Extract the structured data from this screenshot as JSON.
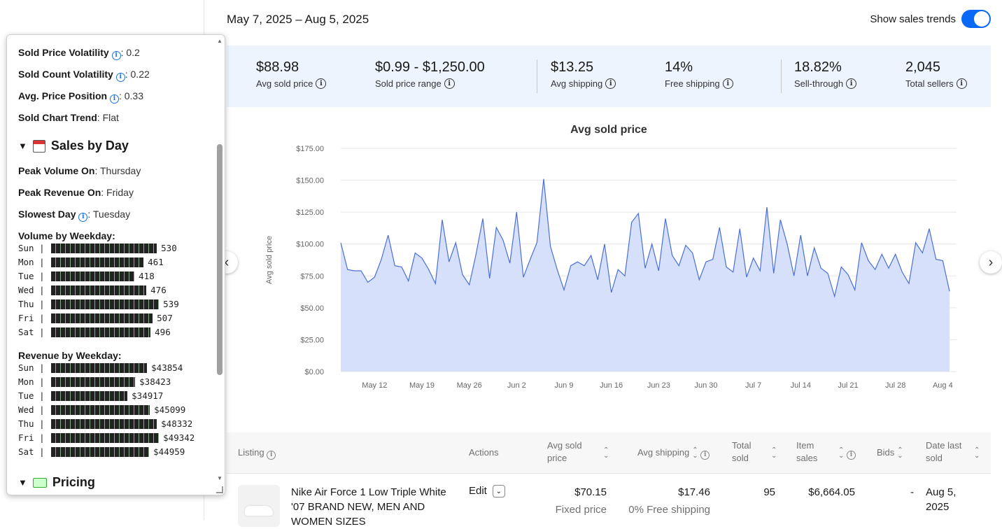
{
  "header": {
    "date_range": "May 7, 2025 – Aug 5, 2025",
    "trend_label": "Show sales trends",
    "trend_on": true
  },
  "metrics": [
    {
      "value": "$88.98",
      "label": "Avg sold price"
    },
    {
      "value": "$0.99 - $1,250.00",
      "label": "Sold price range"
    },
    {
      "value": "$13.25",
      "label": "Avg shipping"
    },
    {
      "value": "14%",
      "label": "Free shipping"
    },
    {
      "value": "18.82%",
      "label": "Sell-through"
    },
    {
      "value": "2,045",
      "label": "Total sellers"
    }
  ],
  "chart_data": {
    "type": "area",
    "title": "Avg sold price",
    "ylabel": "Avg sold price",
    "ylim": [
      0,
      175
    ],
    "y_ticks": [
      "$0.00",
      "$25.00",
      "$50.00",
      "$75.00",
      "$100.00",
      "$125.00",
      "$150.00",
      "$175.00"
    ],
    "x_ticks": [
      "May 12",
      "May 19",
      "May 26",
      "Jun 2",
      "Jun 9",
      "Jun 16",
      "Jun 23",
      "Jun 30",
      "Jul 7",
      "Jul 14",
      "Jul 21",
      "Jul 28",
      "Aug 4"
    ],
    "x_start": "May 7",
    "x_end": "Aug 5",
    "color": "#4a6fd8",
    "fill": "#d6e0fa",
    "values": [
      101,
      80,
      79,
      79,
      70,
      74,
      88,
      107,
      83,
      82,
      71,
      93,
      89,
      80,
      69,
      119,
      86,
      101,
      76,
      68,
      92,
      120,
      73,
      113,
      103,
      85,
      125,
      74,
      88,
      101,
      151,
      98,
      80,
      64,
      83,
      86,
      83,
      91,
      72,
      100,
      62,
      80,
      75,
      117,
      124,
      81,
      100,
      79,
      120,
      91,
      83,
      99,
      93,
      72,
      86,
      88,
      113,
      82,
      78,
      112,
      74,
      89,
      79,
      129,
      77,
      119,
      100,
      75,
      107,
      75,
      97,
      81,
      77,
      59,
      82,
      76,
      64,
      101,
      87,
      80,
      92,
      81,
      92,
      78,
      69,
      101,
      93,
      112,
      88,
      87,
      63
    ]
  },
  "table": {
    "headers": {
      "listing": "Listing",
      "actions": "Actions",
      "avg_sold_price": "Avg sold price",
      "avg_shipping": "Avg shipping",
      "total_sold": "Total sold",
      "item_sales": "Item sales",
      "bids": "Bids",
      "date_last_sold": "Date last sold"
    },
    "rows": [
      {
        "title": "Nike Air Force 1 Low Triple White '07 BRAND NEW, MEN AND WOMEN SIZES",
        "action": "Edit",
        "avg_sold_price": "$70.15",
        "price_type": "Fixed price",
        "avg_shipping": "$17.46",
        "free_shipping": "0% Free shipping",
        "total_sold": "95",
        "item_sales": "$6,664.05",
        "bids": "-",
        "date_last_sold": "Aug 5, 2025"
      }
    ]
  },
  "panel": {
    "lines_top": [
      {
        "key": "Sold Price Volatility",
        "info": true,
        "value": ": 0.2"
      },
      {
        "key": "Sold Count Volatility",
        "info": true,
        "value": ": 0.22"
      },
      {
        "key": "Avg. Price Position",
        "info": true,
        "value": ": 0.33"
      },
      {
        "key": "Sold Chart Trend",
        "info": false,
        "value": ": Flat"
      }
    ],
    "sales_by_day_title": "Sales by Day",
    "lines_day": [
      {
        "key": "Peak Volume On",
        "info": false,
        "value": ": Thursday"
      },
      {
        "key": "Peak Revenue On",
        "info": false,
        "value": ": Friday"
      },
      {
        "key": "Slowest Day",
        "info": true,
        "value": ": Tuesday"
      }
    ],
    "volume_title": "Volume by Weekday:",
    "volume": [
      {
        "day": "Sun",
        "value": 530,
        "label": "530"
      },
      {
        "day": "Mon",
        "value": 461,
        "label": "461"
      },
      {
        "day": "Tue",
        "value": 418,
        "label": "418"
      },
      {
        "day": "Wed",
        "value": 476,
        "label": "476"
      },
      {
        "day": "Thu",
        "value": 539,
        "label": "539"
      },
      {
        "day": "Fri",
        "value": 507,
        "label": "507"
      },
      {
        "day": "Sat",
        "value": 496,
        "label": "496"
      }
    ],
    "revenue_title": "Revenue by Weekday:",
    "revenue": [
      {
        "day": "Sun",
        "value": 43854,
        "label": "$43854"
      },
      {
        "day": "Mon",
        "value": 38423,
        "label": "$38423"
      },
      {
        "day": "Tue",
        "value": 34917,
        "label": "$34917"
      },
      {
        "day": "Wed",
        "value": 45099,
        "label": "$45099"
      },
      {
        "day": "Thu",
        "value": 48332,
        "label": "$48332"
      },
      {
        "day": "Fri",
        "value": 49342,
        "label": "$49342"
      },
      {
        "day": "Sat",
        "value": 44959,
        "label": "$44959"
      }
    ],
    "pricing_title": "Pricing"
  }
}
